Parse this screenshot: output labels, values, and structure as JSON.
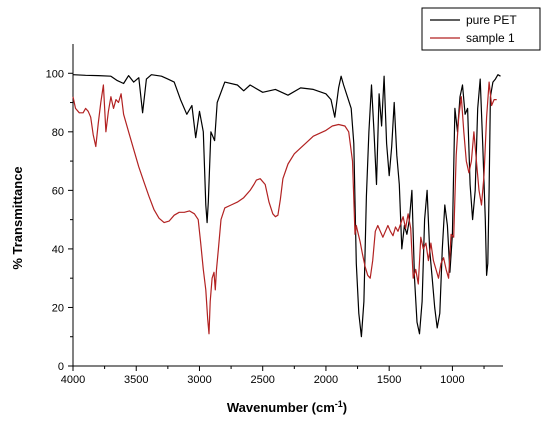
{
  "chart_data": {
    "type": "line",
    "xlabel": "Wavenumber (cm",
    "xlabel_sup": "-1",
    "xlabel_suffix": ")",
    "ylabel": "% Transmittance",
    "xlim": [
      4000,
      600
    ],
    "ylim": [
      0,
      110
    ],
    "x_reversed": true,
    "x_ticks": [
      4000,
      3500,
      3000,
      2500,
      2000,
      1500,
      1000
    ],
    "y_ticks": [
      0,
      20,
      40,
      60,
      80,
      100
    ],
    "legend_position": "top-right",
    "grid": false,
    "series": [
      {
        "name": "pure PET",
        "color": "#000000",
        "points": [
          [
            4000,
            99.5
          ],
          [
            3900,
            99.3
          ],
          [
            3800,
            99.2
          ],
          [
            3700,
            99.0
          ],
          [
            3650,
            97.5
          ],
          [
            3600,
            96.5
          ],
          [
            3560,
            99.2
          ],
          [
            3520,
            97.0
          ],
          [
            3480,
            98.5
          ],
          [
            3450,
            86.5
          ],
          [
            3420,
            98.0
          ],
          [
            3380,
            99.5
          ],
          [
            3300,
            99.0
          ],
          [
            3250,
            98.0
          ],
          [
            3200,
            97.0
          ],
          [
            3150,
            91.0
          ],
          [
            3100,
            86.0
          ],
          [
            3060,
            89.0
          ],
          [
            3030,
            78.0
          ],
          [
            3000,
            87.0
          ],
          [
            2970,
            80.0
          ],
          [
            2950,
            55.0
          ],
          [
            2940,
            49.0
          ],
          [
            2930,
            56.0
          ],
          [
            2910,
            80.0
          ],
          [
            2880,
            77.0
          ],
          [
            2860,
            90.0
          ],
          [
            2800,
            97.0
          ],
          [
            2700,
            96.0
          ],
          [
            2650,
            94.0
          ],
          [
            2600,
            96.0
          ],
          [
            2500,
            93.5
          ],
          [
            2400,
            94.5
          ],
          [
            2300,
            92.5
          ],
          [
            2200,
            95.0
          ],
          [
            2100,
            94.5
          ],
          [
            2000,
            93.0
          ],
          [
            1960,
            91.0
          ],
          [
            1930,
            85.0
          ],
          [
            1900,
            95.0
          ],
          [
            1880,
            99.0
          ],
          [
            1860,
            96.0
          ],
          [
            1830,
            92.0
          ],
          [
            1800,
            88.0
          ],
          [
            1780,
            76.0
          ],
          [
            1760,
            35.0
          ],
          [
            1740,
            18.0
          ],
          [
            1720,
            10.0
          ],
          [
            1700,
            22.0
          ],
          [
            1680,
            58.0
          ],
          [
            1660,
            80.0
          ],
          [
            1640,
            96.0
          ],
          [
            1620,
            80.0
          ],
          [
            1600,
            62.0
          ],
          [
            1580,
            93.0
          ],
          [
            1560,
            82.0
          ],
          [
            1540,
            99.0
          ],
          [
            1520,
            76.0
          ],
          [
            1500,
            65.0
          ],
          [
            1480,
            75.0
          ],
          [
            1460,
            90.0
          ],
          [
            1440,
            72.0
          ],
          [
            1420,
            62.0
          ],
          [
            1400,
            40.0
          ],
          [
            1380,
            48.0
          ],
          [
            1360,
            45.0
          ],
          [
            1340,
            50.0
          ],
          [
            1320,
            60.0
          ],
          [
            1300,
            30.0
          ],
          [
            1280,
            15.0
          ],
          [
            1260,
            11.0
          ],
          [
            1240,
            22.0
          ],
          [
            1220,
            50.0
          ],
          [
            1200,
            60.0
          ],
          [
            1180,
            40.0
          ],
          [
            1160,
            30.0
          ],
          [
            1140,
            20.0
          ],
          [
            1120,
            13.0
          ],
          [
            1100,
            18.0
          ],
          [
            1080,
            40.0
          ],
          [
            1060,
            55.0
          ],
          [
            1040,
            48.0
          ],
          [
            1020,
            32.0
          ],
          [
            1000,
            45.0
          ],
          [
            980,
            88.0
          ],
          [
            960,
            80.0
          ],
          [
            940,
            92.0
          ],
          [
            920,
            96.0
          ],
          [
            900,
            86.0
          ],
          [
            880,
            88.0
          ],
          [
            860,
            62.0
          ],
          [
            840,
            50.0
          ],
          [
            820,
            60.0
          ],
          [
            800,
            88.0
          ],
          [
            780,
            98.0
          ],
          [
            760,
            75.0
          ],
          [
            740,
            50.0
          ],
          [
            730,
            31.0
          ],
          [
            720,
            35.0
          ],
          [
            710,
            60.0
          ],
          [
            700,
            92.0
          ],
          [
            680,
            97.0
          ],
          [
            660,
            98.0
          ],
          [
            640,
            99.5
          ],
          [
            620,
            99.0
          ]
        ]
      },
      {
        "name": "sample 1",
        "color": "#b22222",
        "points": [
          [
            4000,
            92.0
          ],
          [
            3980,
            88.0
          ],
          [
            3950,
            86.5
          ],
          [
            3920,
            86.5
          ],
          [
            3900,
            88.0
          ],
          [
            3880,
            87.0
          ],
          [
            3860,
            85.0
          ],
          [
            3840,
            79.0
          ],
          [
            3820,
            75.0
          ],
          [
            3800,
            83.0
          ],
          [
            3780,
            90.0
          ],
          [
            3760,
            96.0
          ],
          [
            3740,
            80.0
          ],
          [
            3720,
            87.0
          ],
          [
            3700,
            92.0
          ],
          [
            3680,
            88.0
          ],
          [
            3660,
            91.0
          ],
          [
            3640,
            90.0
          ],
          [
            3620,
            93.0
          ],
          [
            3600,
            86.0
          ],
          [
            3560,
            80.0
          ],
          [
            3520,
            74.0
          ],
          [
            3480,
            68.0
          ],
          [
            3440,
            63.0
          ],
          [
            3400,
            58.0
          ],
          [
            3360,
            53.5
          ],
          [
            3320,
            50.5
          ],
          [
            3280,
            49.0
          ],
          [
            3240,
            49.5
          ],
          [
            3200,
            51.5
          ],
          [
            3160,
            52.5
          ],
          [
            3120,
            52.5
          ],
          [
            3080,
            53.0
          ],
          [
            3040,
            52.0
          ],
          [
            3010,
            50.0
          ],
          [
            2990,
            42.0
          ],
          [
            2970,
            33.0
          ],
          [
            2950,
            26.0
          ],
          [
            2935,
            16.0
          ],
          [
            2925,
            11.0
          ],
          [
            2915,
            22.0
          ],
          [
            2900,
            30.0
          ],
          [
            2885,
            32.0
          ],
          [
            2875,
            26.0
          ],
          [
            2865,
            33.0
          ],
          [
            2850,
            40.0
          ],
          [
            2830,
            50.0
          ],
          [
            2800,
            54.0
          ],
          [
            2750,
            55.0
          ],
          [
            2700,
            56.0
          ],
          [
            2650,
            57.5
          ],
          [
            2600,
            60.0
          ],
          [
            2570,
            62.0
          ],
          [
            2550,
            63.5
          ],
          [
            2520,
            64.0
          ],
          [
            2480,
            62.0
          ],
          [
            2450,
            56.0
          ],
          [
            2420,
            52.0
          ],
          [
            2400,
            51.0
          ],
          [
            2380,
            51.5
          ],
          [
            2360,
            57.0
          ],
          [
            2340,
            64.0
          ],
          [
            2300,
            69.0
          ],
          [
            2250,
            72.5
          ],
          [
            2200,
            74.5
          ],
          [
            2150,
            76.5
          ],
          [
            2100,
            78.5
          ],
          [
            2050,
            79.5
          ],
          [
            2000,
            80.5
          ],
          [
            1950,
            82.0
          ],
          [
            1900,
            82.5
          ],
          [
            1850,
            82.0
          ],
          [
            1820,
            80.0
          ],
          [
            1790,
            70.0
          ],
          [
            1770,
            45.0
          ],
          [
            1760,
            48.0
          ],
          [
            1750,
            46.0
          ],
          [
            1730,
            42.5
          ],
          [
            1710,
            38.0
          ],
          [
            1690,
            34.0
          ],
          [
            1670,
            31.0
          ],
          [
            1650,
            30.0
          ],
          [
            1630,
            36.0
          ],
          [
            1610,
            46.0
          ],
          [
            1590,
            48.0
          ],
          [
            1570,
            46.0
          ],
          [
            1550,
            44.0
          ],
          [
            1530,
            46.0
          ],
          [
            1510,
            48.0
          ],
          [
            1490,
            46.0
          ],
          [
            1470,
            44.5
          ],
          [
            1450,
            47.5
          ],
          [
            1430,
            46.0
          ],
          [
            1410,
            48.5
          ],
          [
            1390,
            51.0
          ],
          [
            1370,
            47.0
          ],
          [
            1350,
            52.0
          ],
          [
            1330,
            47.0
          ],
          [
            1310,
            30.0
          ],
          [
            1290,
            33.0
          ],
          [
            1270,
            28.0
          ],
          [
            1250,
            44.0
          ],
          [
            1230,
            40.0
          ],
          [
            1210,
            42.0
          ],
          [
            1190,
            36.0
          ],
          [
            1170,
            42.0
          ],
          [
            1150,
            36.0
          ],
          [
            1130,
            33.0
          ],
          [
            1110,
            30.0
          ],
          [
            1090,
            35.0
          ],
          [
            1070,
            37.0
          ],
          [
            1050,
            33.0
          ],
          [
            1030,
            30.0
          ],
          [
            1010,
            45.0
          ],
          [
            990,
            44.0
          ],
          [
            970,
            72.0
          ],
          [
            950,
            85.0
          ],
          [
            930,
            92.0
          ],
          [
            910,
            80.0
          ],
          [
            890,
            70.0
          ],
          [
            870,
            66.0
          ],
          [
            850,
            70.0
          ],
          [
            830,
            80.0
          ],
          [
            810,
            70.0
          ],
          [
            790,
            60.0
          ],
          [
            770,
            55.0
          ],
          [
            750,
            65.0
          ],
          [
            730,
            85.0
          ],
          [
            710,
            97.0
          ],
          [
            690,
            89.0
          ],
          [
            670,
            91.0
          ],
          [
            650,
            91.0
          ]
        ]
      }
    ]
  }
}
